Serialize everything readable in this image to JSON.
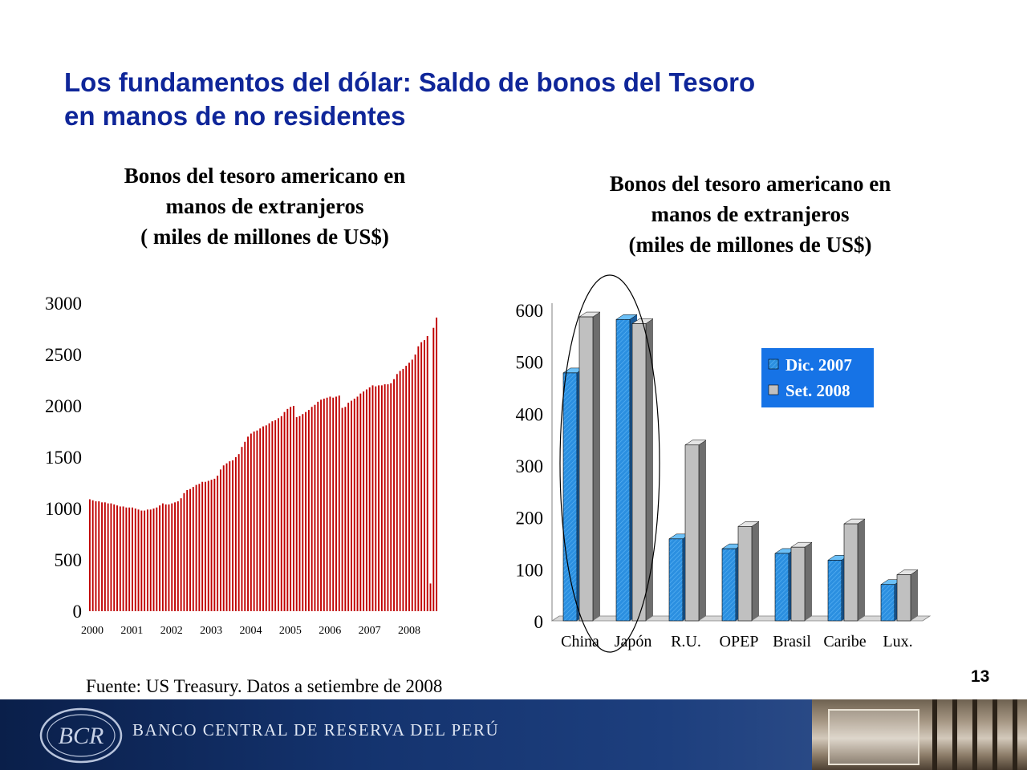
{
  "slide": {
    "title_line1": "Los fundamentos del dólar: Saldo de bonos del Tesoro",
    "title_line2": "en manos de no residentes",
    "source": "Fuente: US Treasury. Datos a setiembre de 2008",
    "page_number": "13",
    "footer_bank_name": "BANCO CENTRAL DE RESERVA DEL PERÚ",
    "colors": {
      "title": "#0f2699",
      "footer": "#14336e"
    }
  },
  "chart_data": [
    {
      "type": "bar",
      "title_lines": [
        "Bonos del tesoro americano en",
        "manos de extranjeros",
        "( miles de millones de US$)"
      ],
      "ylim": [
        0,
        3000
      ],
      "yticks": [
        0,
        500,
        1000,
        1500,
        2000,
        2500,
        3000
      ],
      "xtick_labels": [
        "2000",
        "2001",
        "2002",
        "2003",
        "2004",
        "2005",
        "2006",
        "2007",
        "2008"
      ],
      "bar_color": "#c00000",
      "grid": false,
      "values": [
        1090,
        1080,
        1070,
        1070,
        1060,
        1060,
        1050,
        1050,
        1040,
        1030,
        1020,
        1020,
        1010,
        1010,
        1010,
        1000,
        990,
        980,
        980,
        990,
        990,
        1000,
        1010,
        1030,
        1050,
        1040,
        1040,
        1050,
        1060,
        1070,
        1100,
        1150,
        1180,
        1190,
        1210,
        1230,
        1240,
        1260,
        1260,
        1270,
        1280,
        1290,
        1320,
        1380,
        1420,
        1440,
        1460,
        1470,
        1500,
        1530,
        1600,
        1650,
        1700,
        1730,
        1750,
        1760,
        1780,
        1800,
        1810,
        1830,
        1850,
        1860,
        1880,
        1900,
        1940,
        1970,
        1990,
        2000,
        1890,
        1900,
        1920,
        1940,
        1960,
        1990,
        2010,
        2040,
        2060,
        2070,
        2080,
        2090,
        2080,
        2090,
        2100,
        1980,
        1990,
        2030,
        2050,
        2070,
        2090,
        2120,
        2140,
        2160,
        2180,
        2200,
        2190,
        2200,
        2200,
        2210,
        2210,
        2220,
        2260,
        2310,
        2340,
        2360,
        2390,
        2420,
        2450,
        2500,
        2580,
        2620,
        2640,
        2680,
        270,
        2760,
        2860
      ]
    },
    {
      "type": "bar",
      "title_lines": [
        "Bonos del tesoro americano en",
        "manos de extranjeros",
        "(miles de millones de US$)"
      ],
      "categories": [
        "China",
        "Japón",
        "R.U.",
        "OPEP",
        "Brasil",
        "Caribe",
        "Lux."
      ],
      "ylim": [
        0,
        600
      ],
      "yticks": [
        0,
        100,
        200,
        300,
        400,
        500,
        600
      ],
      "legend_position": "top-right",
      "legend_background": "#1673e6",
      "grid": false,
      "series": [
        {
          "name": "Dic. 2007",
          "color": "#2b8fe0",
          "values": [
            478,
            581,
            158,
            139,
            130,
            117,
            70
          ]
        },
        {
          "name": "Set. 2008",
          "color": "#c0c0c0",
          "values": [
            586,
            573,
            339,
            182,
            142,
            187,
            89
          ]
        }
      ],
      "highlight": "ellipse around China and Japón"
    }
  ]
}
